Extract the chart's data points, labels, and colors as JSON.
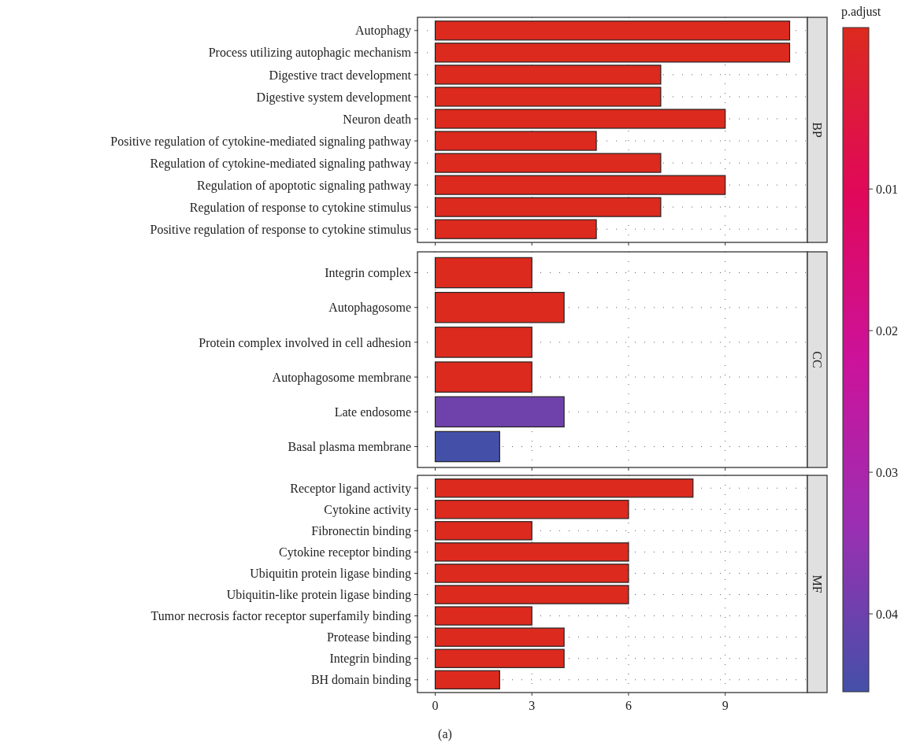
{
  "chart_data": [
    {
      "type": "bar",
      "orientation": "horizontal",
      "title": "BP",
      "categories": [
        "Autophagy",
        "Process utilizing autophagic mechanism",
        "Digestive tract development",
        "Digestive system development",
        "Neuron death",
        "Positive regulation of cytokine-mediated signaling pathway",
        "Regulation of cytokine-mediated signaling pathway",
        "Regulation of apoptotic signaling pathway",
        "Regulation of response to cytokine stimulus",
        "Positive regulation of response to cytokine stimulus"
      ],
      "values": [
        11,
        11,
        7,
        7,
        9,
        5,
        7,
        9,
        7,
        5
      ],
      "colors": [
        "#dc2a1e",
        "#dc2a1e",
        "#dc2a1e",
        "#dc2a1e",
        "#dc2a1e",
        "#dc2a1e",
        "#dc2a1e",
        "#dc2a1e",
        "#dc2a1e",
        "#dc2a1e"
      ],
      "xlim": [
        -0.55,
        11.55
      ],
      "xticks": [
        0,
        3,
        6,
        9
      ],
      "grid": true,
      "tick_labels": "y",
      "clabel": "p.adjust",
      "clim": [
        0.0455,
        -0.0014
      ],
      "cticks": [
        0.01,
        0.02,
        0.03,
        0.04
      ]
    },
    {
      "type": "bar",
      "orientation": "horizontal",
      "title": "CC",
      "categories": [
        "Integrin complex",
        "Autophagosome",
        "Protein complex involved in cell adhesion",
        "Autophagosome membrane",
        "Late endosome",
        "Basal plasma membrane"
      ],
      "values": [
        3,
        4,
        3,
        3,
        4,
        2
      ],
      "colors": [
        "#dc2a1e",
        "#dc2a1e",
        "#dc2a1e",
        "#dc2a1e",
        "#6f42ab",
        "#4450a8"
      ],
      "xlim": [
        -0.55,
        11.55
      ],
      "xticks": [
        0,
        3,
        6,
        9
      ],
      "grid": true,
      "tick_labels": "y"
    },
    {
      "type": "bar",
      "orientation": "horizontal",
      "title": "MF",
      "categories": [
        "Receptor ligand activity",
        "Cytokine activity",
        "Fibronectin binding",
        "Cytokine receptor binding",
        "Ubiquitin protein ligase binding",
        "Ubiquitin-like protein ligase binding",
        "Tumor necrosis factor receptor superfamily binding",
        "Protease binding",
        "Integrin binding",
        "BH domain binding"
      ],
      "values": [
        8,
        6,
        3,
        6,
        6,
        6,
        3,
        4,
        4,
        2
      ],
      "colors": [
        "#dc2a1e",
        "#dc2a1e",
        "#dc2a1e",
        "#dc2a1e",
        "#dc2a1e",
        "#dc2a1e",
        "#dc2a1e",
        "#dc2a1e",
        "#dc2a1e",
        "#dc2a1e"
      ],
      "xlim": [
        -0.55,
        11.55
      ],
      "xticks": [
        0,
        3,
        6,
        9
      ],
      "grid": true,
      "annotations": [
        "(a)"
      ]
    }
  ]
}
